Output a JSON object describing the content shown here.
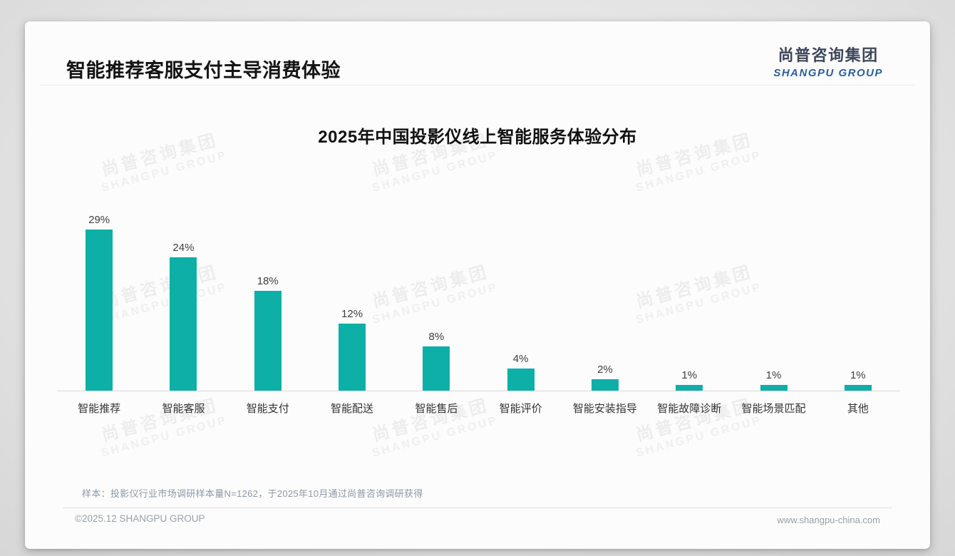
{
  "page": {
    "header_title": "智能推荐客服支付主导消费体验",
    "logo": {
      "cn": "尚普咨询集团",
      "en": "SHANGPU GROUP"
    },
    "note": "样本：投影仪行业市场调研样本量N=1262，于2025年10月通过尚普咨询调研获得",
    "footer": {
      "copyright": "©2025.12 SHANGPU GROUP",
      "website": "www.shangpu-china.com"
    }
  },
  "watermark": {
    "line1": "尚普咨询集团",
    "line2": "SHANGPU GROUP"
  },
  "colors": {
    "bar": "#0dafa7",
    "logo_blue": "#2f5d9b",
    "logo_dark": "#3d4757"
  },
  "chart_data": {
    "type": "bar",
    "title": "2025年中国投影仪线上智能服务体验分布",
    "categories": [
      "智能推荐",
      "智能客服",
      "智能支付",
      "智能配送",
      "智能售后",
      "智能评价",
      "智能安装指导",
      "智能故障诊断",
      "智能场景匹配",
      "其他"
    ],
    "values": [
      29,
      24,
      18,
      12,
      8,
      4,
      2,
      1,
      1,
      1
    ],
    "unit": "%",
    "xlabel": "",
    "ylabel": "",
    "ylim": [
      0,
      30
    ],
    "grid": false,
    "value_labels": true,
    "legend": "none"
  }
}
